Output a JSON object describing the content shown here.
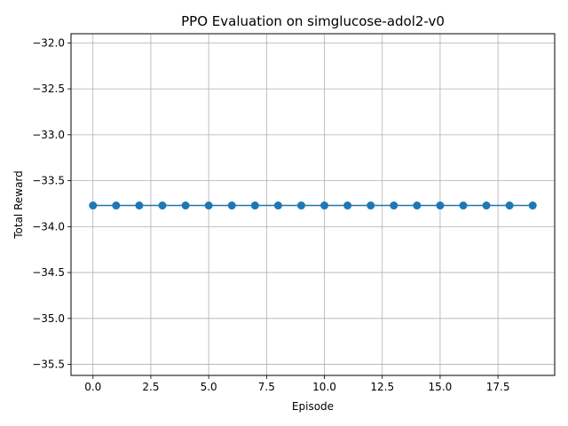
{
  "chart_data": {
    "type": "line",
    "title": "PPO Evaluation on simglucose-adol2-v0",
    "xlabel": "Episode",
    "ylabel": "Total Reward",
    "xlim": [
      -0.95,
      19.95
    ],
    "ylim": [
      -35.62,
      -31.9
    ],
    "xticks": [
      0.0,
      2.5,
      5.0,
      7.5,
      10.0,
      12.5,
      15.0,
      17.5
    ],
    "xtick_labels": [
      "0.0",
      "2.5",
      "5.0",
      "7.5",
      "10.0",
      "12.5",
      "15.0",
      "17.5"
    ],
    "yticks": [
      -32.0,
      -32.5,
      -33.0,
      -33.5,
      -34.0,
      -34.5,
      -35.0,
      -35.5
    ],
    "ytick_labels": [
      "−32.0",
      "−32.5",
      "−33.0",
      "−33.5",
      "−34.0",
      "−34.5",
      "−35.0",
      "−35.5"
    ],
    "grid": true,
    "markers": "circle",
    "series": [
      {
        "color": "#1f77b4",
        "x": [
          0,
          1,
          2,
          3,
          4,
          5,
          6,
          7,
          8,
          9,
          10,
          11,
          12,
          13,
          14,
          15,
          16,
          17,
          18,
          19
        ],
        "y": [
          -33.77,
          -33.77,
          -33.77,
          -33.77,
          -33.77,
          -33.77,
          -33.77,
          -33.77,
          -33.77,
          -33.77,
          -33.77,
          -33.77,
          -33.77,
          -33.77,
          -33.77,
          -33.77,
          -33.77,
          -33.77,
          -33.77,
          -33.77
        ]
      }
    ]
  }
}
